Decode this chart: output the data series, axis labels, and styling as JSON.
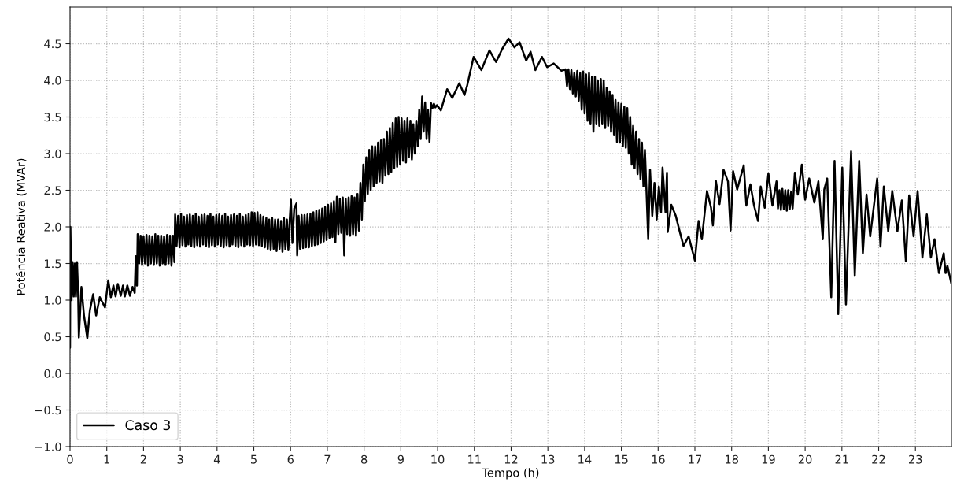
{
  "chart_data": {
    "type": "line",
    "xlabel": "Tempo (h)",
    "ylabel": "Potência Reativa (MVAr)",
    "x": [
      0,
      0.01,
      0.04,
      0.07,
      0.1,
      0.13,
      0.16,
      0.19,
      0.22,
      0.24,
      0.31,
      0.38,
      0.47,
      0.54,
      0.63,
      0.71,
      0.81,
      0.95,
      1.04,
      1.11,
      1.18,
      1.24,
      1.3,
      1.38,
      1.44,
      1.49,
      1.56,
      1.63,
      1.7,
      1.76,
      1.79,
      1.82,
      1.84,
      1.88,
      1.92,
      1.96,
      2.0,
      2.04,
      2.08,
      2.12,
      2.16,
      2.2,
      2.24,
      2.28,
      2.32,
      2.36,
      2.4,
      2.44,
      2.48,
      2.52,
      2.56,
      2.6,
      2.64,
      2.68,
      2.72,
      2.76,
      2.8,
      2.84,
      2.86,
      2.9,
      2.94,
      2.98,
      3.02,
      3.06,
      3.1,
      3.14,
      3.18,
      3.22,
      3.26,
      3.3,
      3.34,
      3.38,
      3.42,
      3.46,
      3.5,
      3.54,
      3.58,
      3.62,
      3.66,
      3.7,
      3.74,
      3.78,
      3.82,
      3.86,
      3.9,
      3.94,
      3.98,
      4.02,
      4.06,
      4.1,
      4.14,
      4.18,
      4.22,
      4.26,
      4.3,
      4.34,
      4.38,
      4.42,
      4.46,
      4.5,
      4.54,
      4.58,
      4.62,
      4.66,
      4.7,
      4.74,
      4.78,
      4.82,
      4.86,
      4.9,
      4.94,
      4.98,
      5.02,
      5.06,
      5.1,
      5.14,
      5.18,
      5.22,
      5.26,
      5.3,
      5.34,
      5.38,
      5.42,
      5.46,
      5.5,
      5.54,
      5.58,
      5.62,
      5.66,
      5.7,
      5.74,
      5.78,
      5.82,
      5.86,
      5.9,
      5.94,
      5.98,
      6.01,
      6.05,
      6.1,
      6.16,
      6.18,
      6.22,
      6.26,
      6.3,
      6.34,
      6.38,
      6.42,
      6.46,
      6.5,
      6.54,
      6.58,
      6.62,
      6.66,
      6.7,
      6.74,
      6.78,
      6.82,
      6.86,
      6.9,
      6.94,
      6.98,
      7.02,
      7.06,
      7.1,
      7.14,
      7.18,
      7.22,
      7.26,
      7.3,
      7.34,
      7.38,
      7.42,
      7.46,
      7.5,
      7.54,
      7.58,
      7.62,
      7.66,
      7.7,
      7.74,
      7.78,
      7.82,
      7.86,
      7.9,
      7.94,
      7.98,
      8.02,
      8.06,
      8.1,
      8.14,
      8.18,
      8.22,
      8.26,
      8.3,
      8.34,
      8.38,
      8.42,
      8.46,
      8.5,
      8.54,
      8.58,
      8.62,
      8.66,
      8.7,
      8.74,
      8.78,
      8.82,
      8.86,
      8.9,
      8.94,
      8.98,
      9.02,
      9.06,
      9.1,
      9.14,
      9.18,
      9.22,
      9.26,
      9.3,
      9.34,
      9.38,
      9.42,
      9.46,
      9.5,
      9.54,
      9.58,
      9.62,
      9.66,
      9.7,
      9.74,
      9.78,
      9.82,
      9.86,
      9.9,
      9.94,
      9.98,
      10.09,
      10.26,
      10.4,
      10.59,
      10.73,
      10.8,
      10.98,
      11.19,
      11.41,
      11.59,
      11.76,
      11.93,
      12.09,
      12.23,
      12.41,
      12.53,
      12.66,
      12.84,
      12.98,
      13.16,
      13.37,
      13.48,
      13.52,
      13.56,
      13.6,
      13.64,
      13.68,
      13.72,
      13.76,
      13.8,
      13.84,
      13.88,
      13.92,
      13.96,
      14.0,
      14.04,
      14.08,
      14.12,
      14.16,
      14.2,
      14.24,
      14.28,
      14.32,
      14.36,
      14.4,
      14.44,
      14.48,
      14.52,
      14.56,
      14.6,
      14.64,
      14.68,
      14.72,
      14.76,
      14.8,
      14.84,
      14.88,
      14.92,
      14.96,
      15.0,
      15.04,
      15.08,
      15.12,
      15.16,
      15.2,
      15.24,
      15.28,
      15.32,
      15.36,
      15.4,
      15.44,
      15.48,
      15.52,
      15.56,
      15.6,
      15.64,
      15.68,
      15.73,
      15.78,
      15.84,
      15.9,
      15.96,
      16.02,
      16.08,
      16.12,
      16.2,
      16.24,
      16.26,
      16.36,
      16.48,
      16.58,
      16.69,
      16.83,
      17.0,
      17.1,
      17.19,
      17.33,
      17.44,
      17.49,
      17.57,
      17.67,
      17.78,
      17.9,
      17.97,
      18.04,
      18.15,
      18.33,
      18.4,
      18.51,
      18.61,
      18.72,
      18.79,
      18.9,
      19.0,
      19.11,
      19.22,
      19.26,
      19.3,
      19.34,
      19.38,
      19.42,
      19.46,
      19.5,
      19.54,
      19.58,
      19.62,
      19.66,
      19.72,
      19.8,
      19.91,
      20.0,
      20.11,
      20.25,
      20.36,
      20.48,
      20.52,
      20.6,
      20.71,
      20.8,
      20.9,
      21.01,
      21.11,
      21.25,
      21.35,
      21.47,
      21.57,
      21.67,
      21.77,
      21.96,
      22.05,
      22.14,
      22.26,
      22.37,
      22.51,
      22.63,
      22.74,
      22.83,
      22.95,
      23.06,
      23.19,
      23.31,
      23.42,
      23.52,
      23.64,
      23.77,
      23.82,
      23.87,
      23.98
    ],
    "series": [
      {
        "name": "Caso 3",
        "color": "#000000",
        "values": [
          0.35,
          2.0,
          1.0,
          1.52,
          1.05,
          1.5,
          1.05,
          1.52,
          1.1,
          0.49,
          1.18,
          0.79,
          0.48,
          0.86,
          1.08,
          0.79,
          1.04,
          0.9,
          1.27,
          1.04,
          1.2,
          1.05,
          1.22,
          1.06,
          1.2,
          1.05,
          1.2,
          1.06,
          1.18,
          1.1,
          1.6,
          1.2,
          1.9,
          1.5,
          1.88,
          1.48,
          1.87,
          1.5,
          1.89,
          1.47,
          1.88,
          1.5,
          1.87,
          1.48,
          1.9,
          1.5,
          1.88,
          1.47,
          1.88,
          1.5,
          1.87,
          1.48,
          1.89,
          1.5,
          1.88,
          1.47,
          1.88,
          1.52,
          2.17,
          1.74,
          2.15,
          1.72,
          2.18,
          1.75,
          2.14,
          1.73,
          2.16,
          1.76,
          2.17,
          1.74,
          2.15,
          1.72,
          2.18,
          1.75,
          2.14,
          1.73,
          2.16,
          1.76,
          2.17,
          1.74,
          2.15,
          1.72,
          2.18,
          1.75,
          2.14,
          1.73,
          2.16,
          1.76,
          2.17,
          1.74,
          2.15,
          1.72,
          2.18,
          1.75,
          2.14,
          1.73,
          2.16,
          1.76,
          2.17,
          1.74,
          2.15,
          1.72,
          2.18,
          1.75,
          2.14,
          1.73,
          2.16,
          1.76,
          2.18,
          1.75,
          2.2,
          1.74,
          2.19,
          1.76,
          2.2,
          1.75,
          2.16,
          1.74,
          2.14,
          1.72,
          2.12,
          1.7,
          2.1,
          1.68,
          2.12,
          1.7,
          2.1,
          1.67,
          2.1,
          1.7,
          2.08,
          1.66,
          2.12,
          1.69,
          2.1,
          1.68,
          2.12,
          2.37,
          1.78,
          2.25,
          2.32,
          1.61,
          2.15,
          1.7,
          2.16,
          1.71,
          2.16,
          1.72,
          2.17,
          1.72,
          2.18,
          1.74,
          2.2,
          1.75,
          2.22,
          1.76,
          2.23,
          1.78,
          2.25,
          1.8,
          2.27,
          1.82,
          2.3,
          1.85,
          2.32,
          1.86,
          2.35,
          1.79,
          2.41,
          1.9,
          2.38,
          1.92,
          2.4,
          1.61,
          2.38,
          1.9,
          2.4,
          1.88,
          2.42,
          1.9,
          2.4,
          1.88,
          2.45,
          1.95,
          2.6,
          2.1,
          2.85,
          2.35,
          2.95,
          2.45,
          3.05,
          2.5,
          3.1,
          2.55,
          3.1,
          2.6,
          3.15,
          2.62,
          3.18,
          2.6,
          3.2,
          2.7,
          3.3,
          2.72,
          3.35,
          2.75,
          3.42,
          2.8,
          3.48,
          2.82,
          3.5,
          2.85,
          3.48,
          2.9,
          3.45,
          2.88,
          3.48,
          2.95,
          3.45,
          2.92,
          3.4,
          3.0,
          3.45,
          3.1,
          3.6,
          3.2,
          3.78,
          3.3,
          3.7,
          3.2,
          3.6,
          3.16,
          3.69,
          3.62,
          3.68,
          3.63,
          3.66,
          3.59,
          3.88,
          3.76,
          3.96,
          3.8,
          3.92,
          4.32,
          4.14,
          4.41,
          4.25,
          4.43,
          4.57,
          4.45,
          4.52,
          4.27,
          4.39,
          4.14,
          4.32,
          4.18,
          4.23,
          4.13,
          4.15,
          3.92,
          4.15,
          3.88,
          4.14,
          3.82,
          4.1,
          3.78,
          4.13,
          3.72,
          4.1,
          3.6,
          4.12,
          3.55,
          4.08,
          3.45,
          4.1,
          3.4,
          4.05,
          3.3,
          4.05,
          3.4,
          4.0,
          3.38,
          4.02,
          3.4,
          4.0,
          3.35,
          3.9,
          3.38,
          3.85,
          3.3,
          3.8,
          3.25,
          3.73,
          3.16,
          3.7,
          3.15,
          3.68,
          3.1,
          3.64,
          3.08,
          3.62,
          3.0,
          3.5,
          2.85,
          3.38,
          2.8,
          3.3,
          2.72,
          3.2,
          2.65,
          3.15,
          2.55,
          3.05,
          2.52,
          1.83,
          2.78,
          2.15,
          2.6,
          2.1,
          2.55,
          2.2,
          2.81,
          2.2,
          2.74,
          1.93,
          2.3,
          2.15,
          1.95,
          1.74,
          1.87,
          1.54,
          2.08,
          1.83,
          2.49,
          2.26,
          2.02,
          2.63,
          2.31,
          2.78,
          2.62,
          1.95,
          2.76,
          2.51,
          2.84,
          2.29,
          2.58,
          2.29,
          2.08,
          2.55,
          2.26,
          2.73,
          2.29,
          2.62,
          2.25,
          2.5,
          2.23,
          2.52,
          2.24,
          2.5,
          2.22,
          2.5,
          2.24,
          2.48,
          2.25,
          2.74,
          2.44,
          2.85,
          2.37,
          2.66,
          2.33,
          2.62,
          1.83,
          2.51,
          2.66,
          1.04,
          2.9,
          0.81,
          2.81,
          0.94,
          3.03,
          1.33,
          2.9,
          1.64,
          2.44,
          1.87,
          2.66,
          1.73,
          2.55,
          1.94,
          2.49,
          1.94,
          2.36,
          1.53,
          2.43,
          1.87,
          2.49,
          1.58,
          2.17,
          1.58,
          1.83,
          1.37,
          1.64,
          1.37,
          1.47,
          1.22
        ]
      }
    ],
    "xlim": [
      0,
      23.98
    ],
    "xticks": [
      0,
      1,
      2,
      3,
      4,
      5,
      6,
      7,
      8,
      9,
      10,
      11,
      12,
      13,
      14,
      15,
      16,
      17,
      18,
      19,
      20,
      21,
      22,
      23
    ],
    "ylim": [
      -1.0,
      5.0
    ],
    "yticks": [
      {
        "value": -1.0,
        "label": "−1.0"
      },
      {
        "value": -0.5,
        "label": "−0.5"
      },
      {
        "value": 0.0,
        "label": "0.0"
      },
      {
        "value": 0.5,
        "label": "0.5"
      },
      {
        "value": 1.0,
        "label": "1.0"
      },
      {
        "value": 1.5,
        "label": "1.5"
      },
      {
        "value": 2.0,
        "label": "2.0"
      },
      {
        "value": 2.5,
        "label": "2.5"
      },
      {
        "value": 3.0,
        "label": "3.0"
      },
      {
        "value": 3.5,
        "label": "3.5"
      },
      {
        "value": 4.0,
        "label": "4.0"
      },
      {
        "value": 4.5,
        "label": "4.5"
      }
    ],
    "grid": true,
    "legend": "bottom left",
    "marker": "none",
    "line_style": "solid"
  }
}
